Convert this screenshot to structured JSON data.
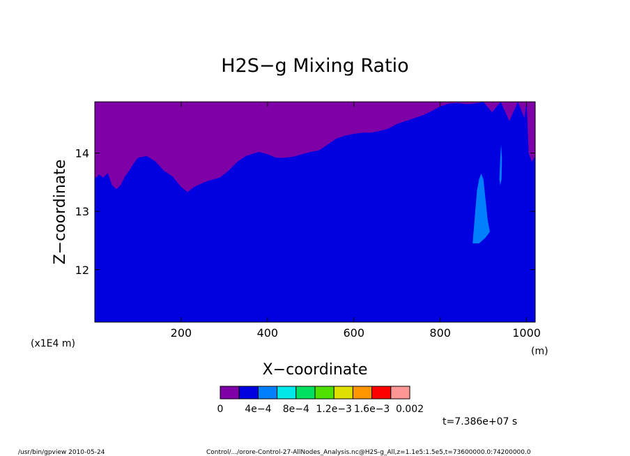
{
  "chart_data": {
    "type": "heatmap",
    "title": "H2S−g Mixing Ratio",
    "xlabel": "X−coordinate",
    "ylabel": "Z−coordinate",
    "x_unit": "(m)",
    "y_unit": "(x1E4 m)",
    "xlim": [
      0,
      1020
    ],
    "ylim": [
      11.1,
      14.88
    ],
    "x_ticks": [
      200,
      400,
      600,
      800,
      1000
    ],
    "x_tick_labels": [
      "200",
      "400",
      "600",
      "800",
      "1000"
    ],
    "y_ticks": [
      12,
      13,
      14
    ],
    "y_tick_labels": [
      "12",
      "13",
      "14"
    ],
    "grid": false,
    "background_region": {
      "level": "0",
      "color": "#8000a8"
    },
    "body_region": {
      "level": "2e-4",
      "color": "#0000e0",
      "upper_boundary": [
        [
          0,
          13.56
        ],
        [
          10,
          13.63
        ],
        [
          20,
          13.58
        ],
        [
          30,
          13.66
        ],
        [
          40,
          13.45
        ],
        [
          50,
          13.38
        ],
        [
          60,
          13.45
        ],
        [
          70,
          13.6
        ],
        [
          80,
          13.7
        ],
        [
          90,
          13.82
        ],
        [
          100,
          13.92
        ],
        [
          120,
          13.95
        ],
        [
          140,
          13.86
        ],
        [
          160,
          13.7
        ],
        [
          180,
          13.6
        ],
        [
          200,
          13.42
        ],
        [
          215,
          13.33
        ],
        [
          230,
          13.42
        ],
        [
          260,
          13.52
        ],
        [
          290,
          13.58
        ],
        [
          310,
          13.7
        ],
        [
          330,
          13.85
        ],
        [
          350,
          13.95
        ],
        [
          380,
          14.02
        ],
        [
          400,
          13.98
        ],
        [
          420,
          13.92
        ],
        [
          440,
          13.92
        ],
        [
          460,
          13.94
        ],
        [
          480,
          13.98
        ],
        [
          500,
          14.02
        ],
        [
          520,
          14.05
        ],
        [
          540,
          14.15
        ],
        [
          560,
          14.25
        ],
        [
          580,
          14.3
        ],
        [
          600,
          14.33
        ],
        [
          620,
          14.35
        ],
        [
          640,
          14.35
        ],
        [
          660,
          14.38
        ],
        [
          680,
          14.42
        ],
        [
          700,
          14.5
        ],
        [
          720,
          14.55
        ],
        [
          740,
          14.6
        ],
        [
          760,
          14.65
        ],
        [
          780,
          14.72
        ],
        [
          800,
          14.8
        ],
        [
          820,
          14.85
        ],
        [
          840,
          14.86
        ],
        [
          860,
          14.84
        ],
        [
          880,
          14.85
        ],
        [
          900,
          14.88
        ],
        [
          920,
          14.7
        ],
        [
          940,
          14.88
        ],
        [
          960,
          14.55
        ],
        [
          980,
          14.88
        ],
        [
          995,
          14.6
        ],
        [
          1000,
          14.88
        ],
        [
          1005,
          14.0
        ],
        [
          1012,
          13.85
        ],
        [
          1020,
          13.95
        ]
      ]
    },
    "patches": [
      {
        "level": "4e-4",
        "color": "#0080ff",
        "polygon": [
          [
            875,
            12.45
          ],
          [
            880,
            12.9
          ],
          [
            885,
            13.35
          ],
          [
            890,
            13.55
          ],
          [
            895,
            13.65
          ],
          [
            900,
            13.55
          ],
          [
            905,
            13.2
          ],
          [
            910,
            12.85
          ],
          [
            915,
            12.65
          ],
          [
            905,
            12.55
          ],
          [
            890,
            12.45
          ]
        ]
      },
      {
        "level": "4e-4",
        "color": "#0080ff",
        "polygon": [
          [
            937,
            13.55
          ],
          [
            939,
            13.9
          ],
          [
            941,
            14.15
          ],
          [
            943,
            13.9
          ],
          [
            942,
            13.55
          ],
          [
            939,
            13.45
          ]
        ]
      }
    ],
    "colorbar": {
      "levels": [
        "0",
        "4e−4",
        "8e−4",
        "1.2e−3",
        "1.6e−3",
        "0.002"
      ],
      "colors": [
        "#8000a8",
        "#0000e0",
        "#0080ff",
        "#00e8e8",
        "#00e060",
        "#50e000",
        "#e0e000",
        "#ff9600",
        "#ff0000",
        "#ff9696"
      ]
    },
    "time_label": "t=7.386e+07 s"
  },
  "footer": {
    "left": "/usr/bin/gpview   2010-05-24",
    "right": "Control/.../orore-Control-27-AllNodes_Analysis.nc@H2S-g_All,z=1.1e5:1.5e5,t=73600000.0:74200000.0"
  }
}
